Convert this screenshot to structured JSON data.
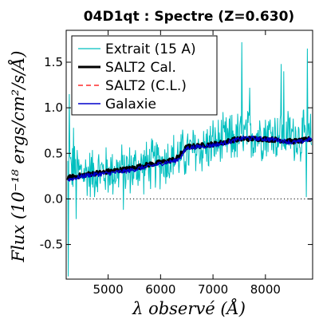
{
  "chart_data": {
    "type": "line",
    "title": "04D1qt : Spectre (Z=0.630)",
    "xlabel": "λ observé (Å)",
    "ylabel": "Flux (10⁻¹⁸ ergs/cm²/s/Å)",
    "xlim": [
      4200,
      8900
    ],
    "ylim": [
      -0.88,
      1.85
    ],
    "x_ticks": [
      5000,
      6000,
      7000,
      8000
    ],
    "y_ticks": [
      -0.5,
      0.0,
      0.5,
      1.0,
      1.5
    ],
    "y_tick_labels": [
      "-0.5",
      "0.0",
      "0.5",
      "1.0",
      "1.5"
    ],
    "x_tick_labels": [
      "5000",
      "6000",
      "7000",
      "8000"
    ],
    "grid": false,
    "legend_position": "top-left",
    "reference_line": {
      "y": 0.0,
      "style": "dotted"
    },
    "series": [
      {
        "name": "Extrait (15 A)",
        "color": "#00bfbf",
        "style": "noisy-line",
        "trend": {
          "x": [
            4230,
            4500,
            5000,
            5500,
            6000,
            6500,
            7000,
            7500,
            8000,
            8500,
            8880
          ],
          "y": [
            0.35,
            0.28,
            0.3,
            0.33,
            0.4,
            0.5,
            0.6,
            0.68,
            0.72,
            0.7,
            0.65
          ]
        },
        "scatter_amplitude": 0.28,
        "spikes": [
          {
            "x": 4240,
            "y": -0.85
          },
          {
            "x": 4260,
            "y": 1.15
          },
          {
            "x": 4340,
            "y": 0.78
          },
          {
            "x": 4390,
            "y": -0.22
          },
          {
            "x": 5290,
            "y": -0.12
          },
          {
            "x": 7550,
            "y": 1.72
          },
          {
            "x": 7700,
            "y": 1.22
          },
          {
            "x": 8300,
            "y": 1.48
          },
          {
            "x": 8350,
            "y": 1.4
          },
          {
            "x": 8780,
            "y": 0.02
          },
          {
            "x": 8800,
            "y": 1.65
          }
        ]
      },
      {
        "name": "SALT2 Cal.",
        "color": "#000000",
        "style": "thick-line",
        "x": [
          4230,
          4600,
          5000,
          5400,
          5800,
          6100,
          6300,
          6400,
          6500,
          6700,
          7000,
          7200,
          7400,
          7600,
          7900,
          8200,
          8500,
          8700,
          8880
        ],
        "y": [
          0.23,
          0.27,
          0.3,
          0.33,
          0.38,
          0.41,
          0.44,
          0.5,
          0.57,
          0.58,
          0.6,
          0.62,
          0.65,
          0.66,
          0.66,
          0.65,
          0.63,
          0.64,
          0.66
        ]
      },
      {
        "name": "SALT2 (C.L.)",
        "color": "#ff0000",
        "style": "dashed-line",
        "x": [],
        "y": []
      },
      {
        "name": "Galaxie",
        "color": "#0000cc",
        "style": "line",
        "x": [
          4230,
          4600,
          5000,
          5400,
          5800,
          6100,
          6300,
          6400,
          6500,
          6700,
          7000,
          7200,
          7400,
          7600,
          7900,
          8200,
          8500,
          8700,
          8880
        ],
        "y": [
          0.21,
          0.26,
          0.28,
          0.31,
          0.36,
          0.4,
          0.42,
          0.47,
          0.56,
          0.57,
          0.59,
          0.61,
          0.64,
          0.67,
          0.66,
          0.65,
          0.62,
          0.63,
          0.66
        ]
      }
    ]
  }
}
